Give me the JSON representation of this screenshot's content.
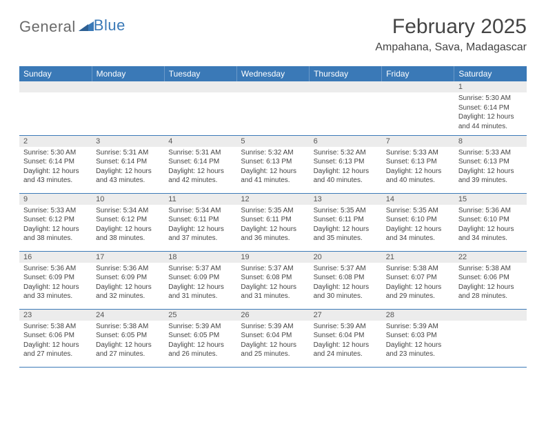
{
  "logo": {
    "part1": "General",
    "part2": "Blue"
  },
  "title": "February 2025",
  "location": "Ampahana, Sava, Madagascar",
  "colors": {
    "header_bg": "#3a79b7",
    "header_text": "#ffffff",
    "daynum_bg": "#ececec",
    "border": "#3a79b7",
    "text": "#444444"
  },
  "weekdays": [
    "Sunday",
    "Monday",
    "Tuesday",
    "Wednesday",
    "Thursday",
    "Friday",
    "Saturday"
  ],
  "weeks": [
    [
      {
        "n": "",
        "sr": "",
        "ss": "",
        "dl": ""
      },
      {
        "n": "",
        "sr": "",
        "ss": "",
        "dl": ""
      },
      {
        "n": "",
        "sr": "",
        "ss": "",
        "dl": ""
      },
      {
        "n": "",
        "sr": "",
        "ss": "",
        "dl": ""
      },
      {
        "n": "",
        "sr": "",
        "ss": "",
        "dl": ""
      },
      {
        "n": "",
        "sr": "",
        "ss": "",
        "dl": ""
      },
      {
        "n": "1",
        "sr": "Sunrise: 5:30 AM",
        "ss": "Sunset: 6:14 PM",
        "dl": "Daylight: 12 hours and 44 minutes."
      }
    ],
    [
      {
        "n": "2",
        "sr": "Sunrise: 5:30 AM",
        "ss": "Sunset: 6:14 PM",
        "dl": "Daylight: 12 hours and 43 minutes."
      },
      {
        "n": "3",
        "sr": "Sunrise: 5:31 AM",
        "ss": "Sunset: 6:14 PM",
        "dl": "Daylight: 12 hours and 43 minutes."
      },
      {
        "n": "4",
        "sr": "Sunrise: 5:31 AM",
        "ss": "Sunset: 6:14 PM",
        "dl": "Daylight: 12 hours and 42 minutes."
      },
      {
        "n": "5",
        "sr": "Sunrise: 5:32 AM",
        "ss": "Sunset: 6:13 PM",
        "dl": "Daylight: 12 hours and 41 minutes."
      },
      {
        "n": "6",
        "sr": "Sunrise: 5:32 AM",
        "ss": "Sunset: 6:13 PM",
        "dl": "Daylight: 12 hours and 40 minutes."
      },
      {
        "n": "7",
        "sr": "Sunrise: 5:33 AM",
        "ss": "Sunset: 6:13 PM",
        "dl": "Daylight: 12 hours and 40 minutes."
      },
      {
        "n": "8",
        "sr": "Sunrise: 5:33 AM",
        "ss": "Sunset: 6:13 PM",
        "dl": "Daylight: 12 hours and 39 minutes."
      }
    ],
    [
      {
        "n": "9",
        "sr": "Sunrise: 5:33 AM",
        "ss": "Sunset: 6:12 PM",
        "dl": "Daylight: 12 hours and 38 minutes."
      },
      {
        "n": "10",
        "sr": "Sunrise: 5:34 AM",
        "ss": "Sunset: 6:12 PM",
        "dl": "Daylight: 12 hours and 38 minutes."
      },
      {
        "n": "11",
        "sr": "Sunrise: 5:34 AM",
        "ss": "Sunset: 6:11 PM",
        "dl": "Daylight: 12 hours and 37 minutes."
      },
      {
        "n": "12",
        "sr": "Sunrise: 5:35 AM",
        "ss": "Sunset: 6:11 PM",
        "dl": "Daylight: 12 hours and 36 minutes."
      },
      {
        "n": "13",
        "sr": "Sunrise: 5:35 AM",
        "ss": "Sunset: 6:11 PM",
        "dl": "Daylight: 12 hours and 35 minutes."
      },
      {
        "n": "14",
        "sr": "Sunrise: 5:35 AM",
        "ss": "Sunset: 6:10 PM",
        "dl": "Daylight: 12 hours and 34 minutes."
      },
      {
        "n": "15",
        "sr": "Sunrise: 5:36 AM",
        "ss": "Sunset: 6:10 PM",
        "dl": "Daylight: 12 hours and 34 minutes."
      }
    ],
    [
      {
        "n": "16",
        "sr": "Sunrise: 5:36 AM",
        "ss": "Sunset: 6:09 PM",
        "dl": "Daylight: 12 hours and 33 minutes."
      },
      {
        "n": "17",
        "sr": "Sunrise: 5:36 AM",
        "ss": "Sunset: 6:09 PM",
        "dl": "Daylight: 12 hours and 32 minutes."
      },
      {
        "n": "18",
        "sr": "Sunrise: 5:37 AM",
        "ss": "Sunset: 6:09 PM",
        "dl": "Daylight: 12 hours and 31 minutes."
      },
      {
        "n": "19",
        "sr": "Sunrise: 5:37 AM",
        "ss": "Sunset: 6:08 PM",
        "dl": "Daylight: 12 hours and 31 minutes."
      },
      {
        "n": "20",
        "sr": "Sunrise: 5:37 AM",
        "ss": "Sunset: 6:08 PM",
        "dl": "Daylight: 12 hours and 30 minutes."
      },
      {
        "n": "21",
        "sr": "Sunrise: 5:38 AM",
        "ss": "Sunset: 6:07 PM",
        "dl": "Daylight: 12 hours and 29 minutes."
      },
      {
        "n": "22",
        "sr": "Sunrise: 5:38 AM",
        "ss": "Sunset: 6:06 PM",
        "dl": "Daylight: 12 hours and 28 minutes."
      }
    ],
    [
      {
        "n": "23",
        "sr": "Sunrise: 5:38 AM",
        "ss": "Sunset: 6:06 PM",
        "dl": "Daylight: 12 hours and 27 minutes."
      },
      {
        "n": "24",
        "sr": "Sunrise: 5:38 AM",
        "ss": "Sunset: 6:05 PM",
        "dl": "Daylight: 12 hours and 27 minutes."
      },
      {
        "n": "25",
        "sr": "Sunrise: 5:39 AM",
        "ss": "Sunset: 6:05 PM",
        "dl": "Daylight: 12 hours and 26 minutes."
      },
      {
        "n": "26",
        "sr": "Sunrise: 5:39 AM",
        "ss": "Sunset: 6:04 PM",
        "dl": "Daylight: 12 hours and 25 minutes."
      },
      {
        "n": "27",
        "sr": "Sunrise: 5:39 AM",
        "ss": "Sunset: 6:04 PM",
        "dl": "Daylight: 12 hours and 24 minutes."
      },
      {
        "n": "28",
        "sr": "Sunrise: 5:39 AM",
        "ss": "Sunset: 6:03 PM",
        "dl": "Daylight: 12 hours and 23 minutes."
      },
      {
        "n": "",
        "sr": "",
        "ss": "",
        "dl": ""
      }
    ]
  ]
}
